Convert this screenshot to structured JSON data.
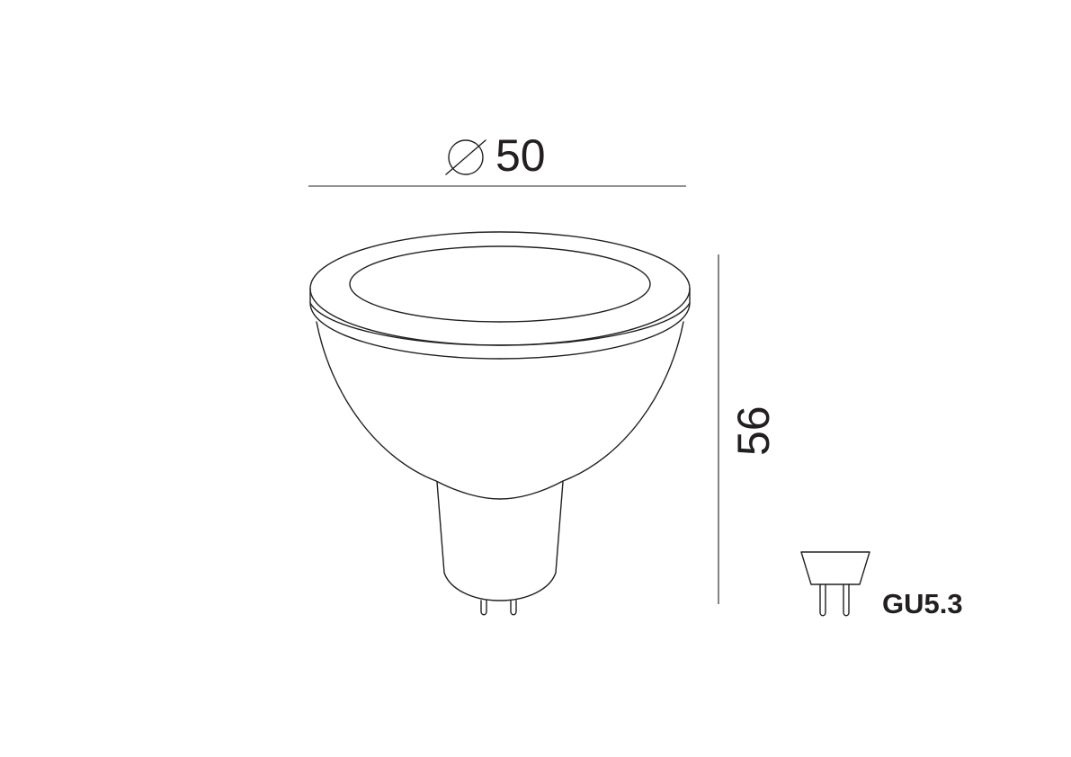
{
  "diameter_dimension": {
    "symbol": "⌀",
    "value": "50"
  },
  "height_dimension": {
    "value": "56"
  },
  "base_type": {
    "label": "GU5.3"
  },
  "colors": {
    "line": "#231f20",
    "background": "#ffffff"
  }
}
